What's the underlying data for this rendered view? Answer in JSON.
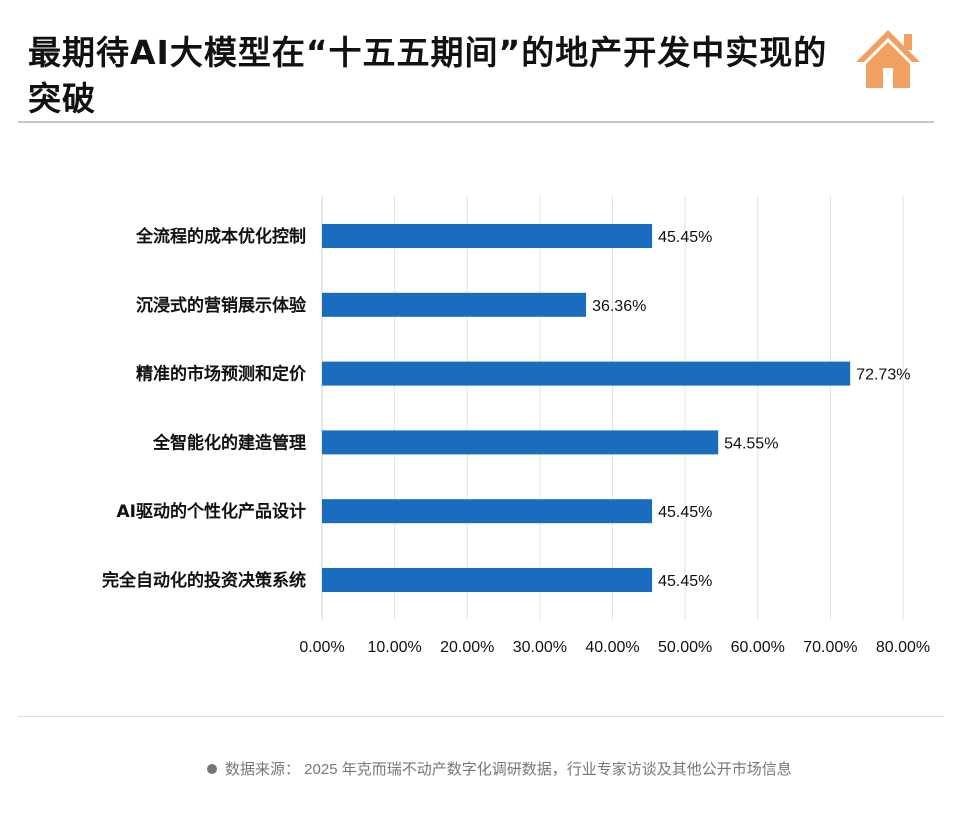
{
  "title": "最期待AI大模型在“十五五期间”的地产开发中实现的突破",
  "icon": "house-icon",
  "source": "数据来源： 2025 年克而瑞不动产数字化调研数据，行业专家访谈及其他公开市场信息",
  "chart_data": {
    "type": "bar",
    "orientation": "horizontal",
    "categories": [
      "全流程的成本优化控制",
      "沉浸式的营销展示体验",
      "精准的市场预测和定价",
      "全智能化的建造管理",
      "AI驱动的个性化产品设计",
      "完全自动化的投资决策系统"
    ],
    "values": [
      45.45,
      36.36,
      72.73,
      54.55,
      45.45,
      45.45
    ],
    "data_labels": [
      "45.45%",
      "36.36%",
      "72.73%",
      "54.55%",
      "45.45%",
      "45.45%"
    ],
    "xlim": [
      0,
      80
    ],
    "x_ticks": [
      "0.00%",
      "10.00%",
      "20.00%",
      "30.00%",
      "40.00%",
      "50.00%",
      "60.00%",
      "70.00%",
      "80.00%"
    ],
    "grid": "vertical",
    "legend": "none",
    "bar_color": "#1a6cbf",
    "accent_color": "#f0a060"
  }
}
